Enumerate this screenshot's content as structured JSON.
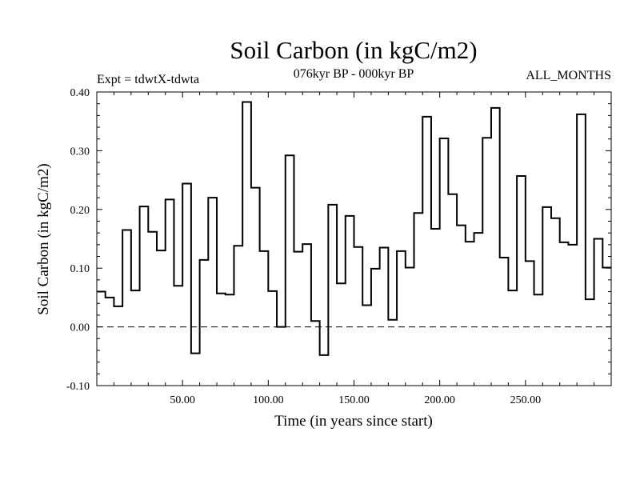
{
  "chart_data": {
    "type": "line",
    "style": "step",
    "title": "Soil Carbon (in kgC/m2)",
    "subtitle_left": "Expt = tdwtX-tdwta",
    "subtitle_center": "076kyr BP - 000kyr BP",
    "subtitle_right": "ALL_MONTHS",
    "xlabel": "Time (in years since start)",
    "ylabel": "Soil Carbon (in kgC/m2)",
    "xlim": [
      0,
      300
    ],
    "ylim": [
      -0.1,
      0.4
    ],
    "x_ticks": [
      50,
      100,
      150,
      200,
      250
    ],
    "x_tick_labels": [
      "50.00",
      "100.00",
      "150.00",
      "200.00",
      "250.00"
    ],
    "y_ticks": [
      -0.1,
      0.0,
      0.1,
      0.2,
      0.3,
      0.4
    ],
    "y_tick_labels": [
      "-0.10",
      "0.00",
      "0.10",
      "0.20",
      "0.30",
      "0.40"
    ],
    "zero_line": "dashed",
    "series": [
      {
        "name": "Soil Carbon",
        "step_width": 5,
        "x": [
          0,
          5,
          10,
          15,
          20,
          25,
          30,
          35,
          40,
          45,
          50,
          55,
          60,
          65,
          70,
          75,
          80,
          85,
          90,
          95,
          100,
          105,
          110,
          115,
          120,
          125,
          130,
          135,
          140,
          145,
          150,
          155,
          160,
          165,
          170,
          175,
          180,
          185,
          190,
          195,
          200,
          205,
          210,
          215,
          220,
          225,
          230,
          235,
          240,
          245,
          250,
          255,
          260,
          265,
          270,
          275,
          280,
          285,
          290,
          295
        ],
        "values": [
          0.06,
          0.05,
          0.035,
          0.165,
          0.062,
          0.205,
          0.162,
          0.13,
          0.217,
          0.07,
          0.244,
          -0.045,
          0.114,
          0.22,
          0.057,
          0.055,
          0.138,
          0.383,
          0.237,
          0.129,
          0.061,
          0.0,
          0.292,
          0.128,
          0.141,
          0.01,
          -0.048,
          0.208,
          0.074,
          0.189,
          0.136,
          0.037,
          0.099,
          0.135,
          0.012,
          0.129,
          0.101,
          0.194,
          0.358,
          0.167,
          0.321,
          0.226,
          0.173,
          0.145,
          0.16,
          0.322,
          0.373,
          0.118,
          0.062,
          0.257,
          0.112,
          0.055,
          0.204,
          0.185,
          0.144,
          0.14,
          0.362,
          0.047,
          0.15,
          0.101
        ]
      }
    ]
  }
}
